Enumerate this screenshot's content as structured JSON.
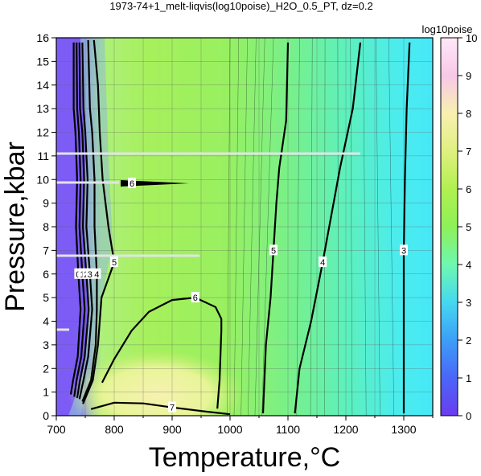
{
  "chart_data": {
    "type": "heatmap",
    "title": "1973-74+1_melt-liqvis(log10poise)_H2O_0.5_PT, dz=0.2",
    "xlabel": "Temperature,°C",
    "ylabel": "Pressure,kbar",
    "xlim": [
      700,
      1350
    ],
    "ylim": [
      0,
      16
    ],
    "x_ticks": [
      "700",
      "800",
      "900",
      "1000",
      "1100",
      "1200",
      "1300"
    ],
    "y_ticks": [
      "0",
      "1",
      "2",
      "3",
      "4",
      "5",
      "6",
      "7",
      "8",
      "9",
      "10",
      "11",
      "12",
      "13",
      "14",
      "15",
      "16"
    ],
    "grid": true,
    "colorbar": {
      "label": "log10poise",
      "range": [
        0,
        10
      ],
      "ticks": [
        "0",
        "1",
        "2",
        "3",
        "4",
        "5",
        "6",
        "7",
        "8",
        "9",
        "10"
      ],
      "colors": [
        "#6a3cf0",
        "#4a66f8",
        "#3d9ef8",
        "#45d8f0",
        "#6ef8b0",
        "#8ef058",
        "#b0f050",
        "#e0f080",
        "#f8f0b0",
        "#f8c8e8",
        "#ffe8f8"
      ]
    },
    "contours": [
      {
        "level": "0",
        "points": [
          [
            730,
            15.8
          ],
          [
            730,
            13
          ],
          [
            733,
            12
          ],
          [
            736,
            10
          ],
          [
            734,
            8
          ],
          [
            738,
            6
          ],
          [
            742,
            4.5
          ],
          [
            737,
            2.5
          ],
          [
            729,
            1.5
          ],
          [
            725,
            0.9
          ]
        ]
      },
      {
        "level": "1",
        "points": [
          [
            735,
            15.8
          ],
          [
            736,
            13
          ],
          [
            739,
            12
          ],
          [
            742,
            10
          ],
          [
            740,
            8
          ],
          [
            745,
            6
          ],
          [
            749,
            4.5
          ],
          [
            743,
            2.5
          ],
          [
            735,
            1.5
          ],
          [
            731,
            0.8
          ]
        ]
      },
      {
        "level": "2",
        "points": [
          [
            740,
            15.8
          ],
          [
            741,
            13
          ],
          [
            745,
            12
          ],
          [
            748,
            10
          ],
          [
            746,
            8
          ],
          [
            752,
            6
          ],
          [
            756,
            4.5
          ],
          [
            749,
            2.5
          ],
          [
            741,
            1.5
          ],
          [
            736,
            0.75
          ]
        ]
      },
      {
        "level": "3",
        "points": [
          [
            745,
            15.8
          ],
          [
            747,
            13
          ],
          [
            750,
            12
          ],
          [
            754,
            10
          ],
          [
            752,
            8
          ],
          [
            758,
            6
          ],
          [
            762,
            4.5
          ],
          [
            755,
            2.5
          ],
          [
            747,
            1.5
          ],
          [
            740,
            0.7
          ]
        ]
      },
      {
        "level": "4",
        "points": [
          [
            755,
            15.9
          ],
          [
            758,
            13
          ],
          [
            762,
            12
          ],
          [
            766,
            10
          ],
          [
            766,
            8
          ],
          [
            770,
            6
          ],
          [
            770,
            4.5
          ],
          [
            768,
            3
          ],
          [
            760,
            1.5
          ],
          [
            745,
            0.6
          ]
        ]
      },
      {
        "level": "5",
        "points": [
          [
            765,
            15.9
          ],
          [
            772,
            14
          ],
          [
            775,
            12
          ],
          [
            780,
            10
          ],
          [
            790,
            8
          ],
          [
            800,
            6.5
          ],
          [
            778,
            5
          ],
          [
            772,
            3
          ],
          [
            763,
            1.5
          ],
          [
            746,
            0.5
          ]
        ]
      },
      {
        "level": "6",
        "points": [
          [
            779,
            1.4
          ],
          [
            800,
            2.4
          ],
          [
            830,
            3.6
          ],
          [
            860,
            4.4
          ],
          [
            900,
            4.9
          ],
          [
            940,
            5
          ],
          [
            975,
            4.6
          ],
          [
            985,
            4.1
          ],
          [
            985,
            3.6
          ],
          [
            982,
            1.5
          ],
          [
            978,
            0.3
          ]
        ]
      },
      {
        "level": "7",
        "points": [
          [
            760,
            0.28
          ],
          [
            800,
            0.55
          ],
          [
            850,
            0.52
          ],
          [
            900,
            0.35
          ],
          [
            960,
            0.17
          ],
          [
            1000,
            0.06
          ]
        ]
      },
      {
        "level": "5",
        "points": [
          [
            1100,
            15.8
          ],
          [
            1097,
            12.5
          ],
          [
            1085,
            10.5
          ],
          [
            1080,
            9
          ],
          [
            1075,
            7
          ],
          [
            1070,
            5
          ],
          [
            1062,
            3
          ],
          [
            1057,
            0.1
          ]
        ]
      },
      {
        "level": "4",
        "points": [
          [
            1225,
            15.8
          ],
          [
            1212,
            13
          ],
          [
            1190,
            10.5
          ],
          [
            1175,
            8.5
          ],
          [
            1160,
            6.5
          ],
          [
            1140,
            4
          ],
          [
            1120,
            2
          ],
          [
            1112,
            0.1
          ]
        ]
      },
      {
        "level": "3",
        "points": [
          [
            1310,
            15.8
          ],
          [
            1305,
            13
          ],
          [
            1302,
            10
          ],
          [
            1300,
            7
          ],
          [
            1300,
            4
          ],
          [
            1300,
            0.1
          ]
        ]
      }
    ],
    "contour_labels": [
      "0",
      "1",
      "2",
      "3",
      "4",
      "5",
      "6",
      "7",
      "5",
      "4",
      "3"
    ],
    "extra_contour_labels": [
      "6"
    ]
  }
}
